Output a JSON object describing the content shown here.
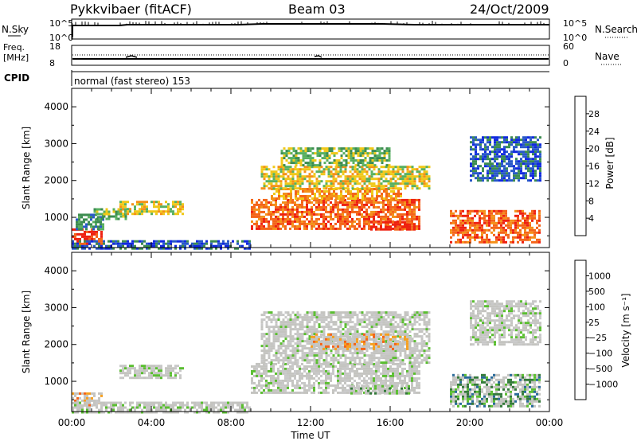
{
  "header": {
    "radar": "Pykkvibaer (fitACF)",
    "beam": "Beam 03",
    "date": "24/Oct/2009"
  },
  "panels": {
    "nsky": {
      "left_label": "N.Sky",
      "left_ticks": [
        "10^5",
        "10^0"
      ],
      "right_ticks": [
        "10^5",
        "10^0"
      ],
      "right_label": "N.Search"
    },
    "freq": {
      "left_label": "Freq.",
      "unit": "[MHz]",
      "left_ticks": [
        "18",
        "8"
      ],
      "right_ticks": [
        "60",
        "0"
      ],
      "right_label": "Nave"
    },
    "cpid": {
      "label": "CPID",
      "text": "normal (fast stereo) 153"
    }
  },
  "colors": {
    "power_scale": [
      "#1028e0",
      "#2858c8",
      "#3c8c50",
      "#58b060",
      "#f0c818",
      "#f49018",
      "#f46418",
      "#ee2010"
    ],
    "velocity_scale": [
      "#1530c8",
      "#2a6a9a",
      "#347a3a",
      "#5abe30",
      "#c8c8c8",
      "#c8c8c8",
      "#f6a020",
      "#f46418",
      "#f53020",
      "#ee0000"
    ],
    "grey_flag": "#c4c4c0"
  },
  "chart_data": [
    {
      "type": "line",
      "title": "",
      "xlabel": "Time UT",
      "x_ticks": [
        "00:00",
        "04:00",
        "08:00",
        "12:00",
        "16:00",
        "20:00",
        "00:00"
      ],
      "x_range_hours": [
        0,
        24
      ],
      "series": [
        {
          "name": "N.Sky",
          "values": []
        },
        {
          "name": "N.Search",
          "values": []
        }
      ]
    },
    {
      "type": "line",
      "xlabel": "Time UT",
      "x_range_hours": [
        0,
        24
      ],
      "series": [
        {
          "name": "Freq.",
          "values": []
        },
        {
          "name": "Nave",
          "values": []
        }
      ]
    },
    {
      "type": "heatmap",
      "ylabel": "Slant Range [km]",
      "xlabel": "Time UT",
      "x_range_hours": [
        0,
        24
      ],
      "ylim": [
        180,
        4500
      ],
      "y_ticks": [
        "1000",
        "2000",
        "3000",
        "4000"
      ],
      "y_tick_values": [
        1000,
        2000,
        3000,
        4000
      ],
      "colorbar": {
        "label": "Power [dB]",
        "ticks": [
          "4",
          "8",
          "12",
          "16",
          "20",
          "24",
          "28"
        ],
        "tick_values": [
          4,
          8,
          12,
          16,
          20,
          24,
          28
        ],
        "range": [
          0,
          32
        ]
      },
      "echo_regions": [
        {
          "t": [
            0.0,
            1.5
          ],
          "r": [
            300,
            700
          ],
          "level": 7
        },
        {
          "t": [
            0.2,
            1.6
          ],
          "r": [
            700,
            1100
          ],
          "level": 2
        },
        {
          "t": [
            1.1,
            2.7
          ],
          "r": [
            950,
            1250
          ],
          "level": 3
        },
        {
          "t": [
            2.4,
            5.6
          ],
          "r": [
            1100,
            1450
          ],
          "level": 4
        },
        {
          "t": [
            0.0,
            9.0
          ],
          "r": [
            180,
            380
          ],
          "level": 1
        },
        {
          "t": [
            9.0,
            17.5
          ],
          "r": [
            700,
            1500
          ],
          "level": 6
        },
        {
          "t": [
            10.0,
            16.5
          ],
          "r": [
            1500,
            1800
          ],
          "level": 5
        },
        {
          "t": [
            9.5,
            18.0
          ],
          "r": [
            1800,
            2400
          ],
          "level": 4
        },
        {
          "t": [
            10.5,
            16.0
          ],
          "r": [
            2400,
            2900
          ],
          "level": 3
        },
        {
          "t": [
            15.0,
            17.2
          ],
          "r": [
            650,
            900
          ],
          "level": 7
        },
        {
          "t": [
            19.0,
            23.5
          ],
          "r": [
            300,
            1200
          ],
          "level": 6
        },
        {
          "t": [
            20.0,
            23.5
          ],
          "r": [
            2000,
            3200
          ],
          "level": 1
        }
      ]
    },
    {
      "type": "heatmap",
      "ylabel": "Slant Range [km]",
      "xlabel": "Time UT",
      "x_range_hours": [
        0,
        24
      ],
      "ylim": [
        180,
        4500
      ],
      "y_ticks": [
        "1000",
        "2000",
        "3000",
        "4000"
      ],
      "y_tick_values": [
        1000,
        2000,
        3000,
        4000
      ],
      "colorbar": {
        "label": "Velocity [m s⁻¹]",
        "ticks": [
          "1000",
          "500",
          "100",
          "25",
          "−25",
          "−100",
          "−500",
          "−1000"
        ],
        "tick_values": [
          1000,
          500,
          100,
          25,
          -25,
          -100,
          -500,
          -1000
        ]
      },
      "echo_regions": [
        {
          "t": [
            0.0,
            1.5
          ],
          "r": [
            350,
            700
          ],
          "level": 6
        },
        {
          "t": [
            0.0,
            9.0
          ],
          "r": [
            180,
            450
          ],
          "level": 4
        },
        {
          "t": [
            2.4,
            5.6
          ],
          "r": [
            1100,
            1450
          ],
          "level": 4
        },
        {
          "t": [
            9.0,
            17.5
          ],
          "r": [
            700,
            1500
          ],
          "level": 4
        },
        {
          "t": [
            9.5,
            18.0
          ],
          "r": [
            1500,
            2900
          ],
          "level": 4
        },
        {
          "t": [
            12.0,
            17.0
          ],
          "r": [
            1900,
            2300
          ],
          "level": 6
        },
        {
          "t": [
            14.0,
            17.0
          ],
          "r": [
            650,
            900
          ],
          "level": 3
        },
        {
          "t": [
            19.0,
            23.5
          ],
          "r": [
            300,
            1200
          ],
          "level": 2
        },
        {
          "t": [
            20.0,
            23.5
          ],
          "r": [
            2000,
            3200
          ],
          "level": 4
        }
      ]
    }
  ]
}
